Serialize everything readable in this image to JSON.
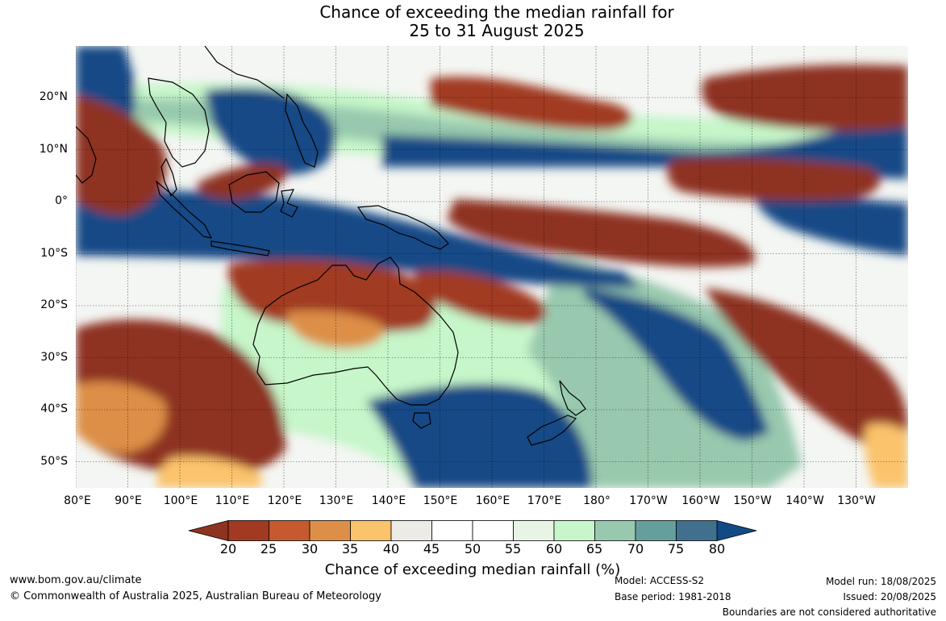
{
  "title": {
    "line1": "Chance of exceeding the median rainfall for",
    "line2": "25 to 31 August 2025"
  },
  "map": {
    "lat_labels": [
      "20°N",
      "10°N",
      "0°",
      "10°S",
      "20°S",
      "30°S",
      "40°S",
      "50°S"
    ],
    "lon_labels": [
      "80°E",
      "90°E",
      "100°E",
      "110°E",
      "120°E",
      "130°E",
      "140°E",
      "150°E",
      "160°E",
      "170°E",
      "180°",
      "170°W",
      "160°W",
      "150°W",
      "140°W",
      "130°W"
    ]
  },
  "colorbar": {
    "ticks": [
      "20",
      "25",
      "30",
      "35",
      "40",
      "45",
      "50",
      "55",
      "60",
      "65",
      "70",
      "75",
      "80"
    ],
    "colors": [
      "#a13a20",
      "#c65a2e",
      "#dd8f47",
      "#fbc36c",
      "#ecebe6",
      "#ffffff",
      "#ffffff",
      "#e8f5e6",
      "#c6f6c9",
      "#98c9ae",
      "#659e9d",
      "#41708f"
    ],
    "under_color": "#8e3320",
    "over_color": "#124a86",
    "label": "Chance of exceeding median rainfall (%)"
  },
  "footer": {
    "website": "www.bom.gov.au/climate",
    "copyright": "© Commonwealth of Australia 2025, Australian Bureau of Meteorology",
    "model": "Model: ACCESS-S2",
    "base_period": "Base period: 1981-2018",
    "model_run": "Model run: 18/08/2025",
    "issued": "Issued: 20/08/2025",
    "disclaimer": "Boundaries are not considered authoritative"
  }
}
